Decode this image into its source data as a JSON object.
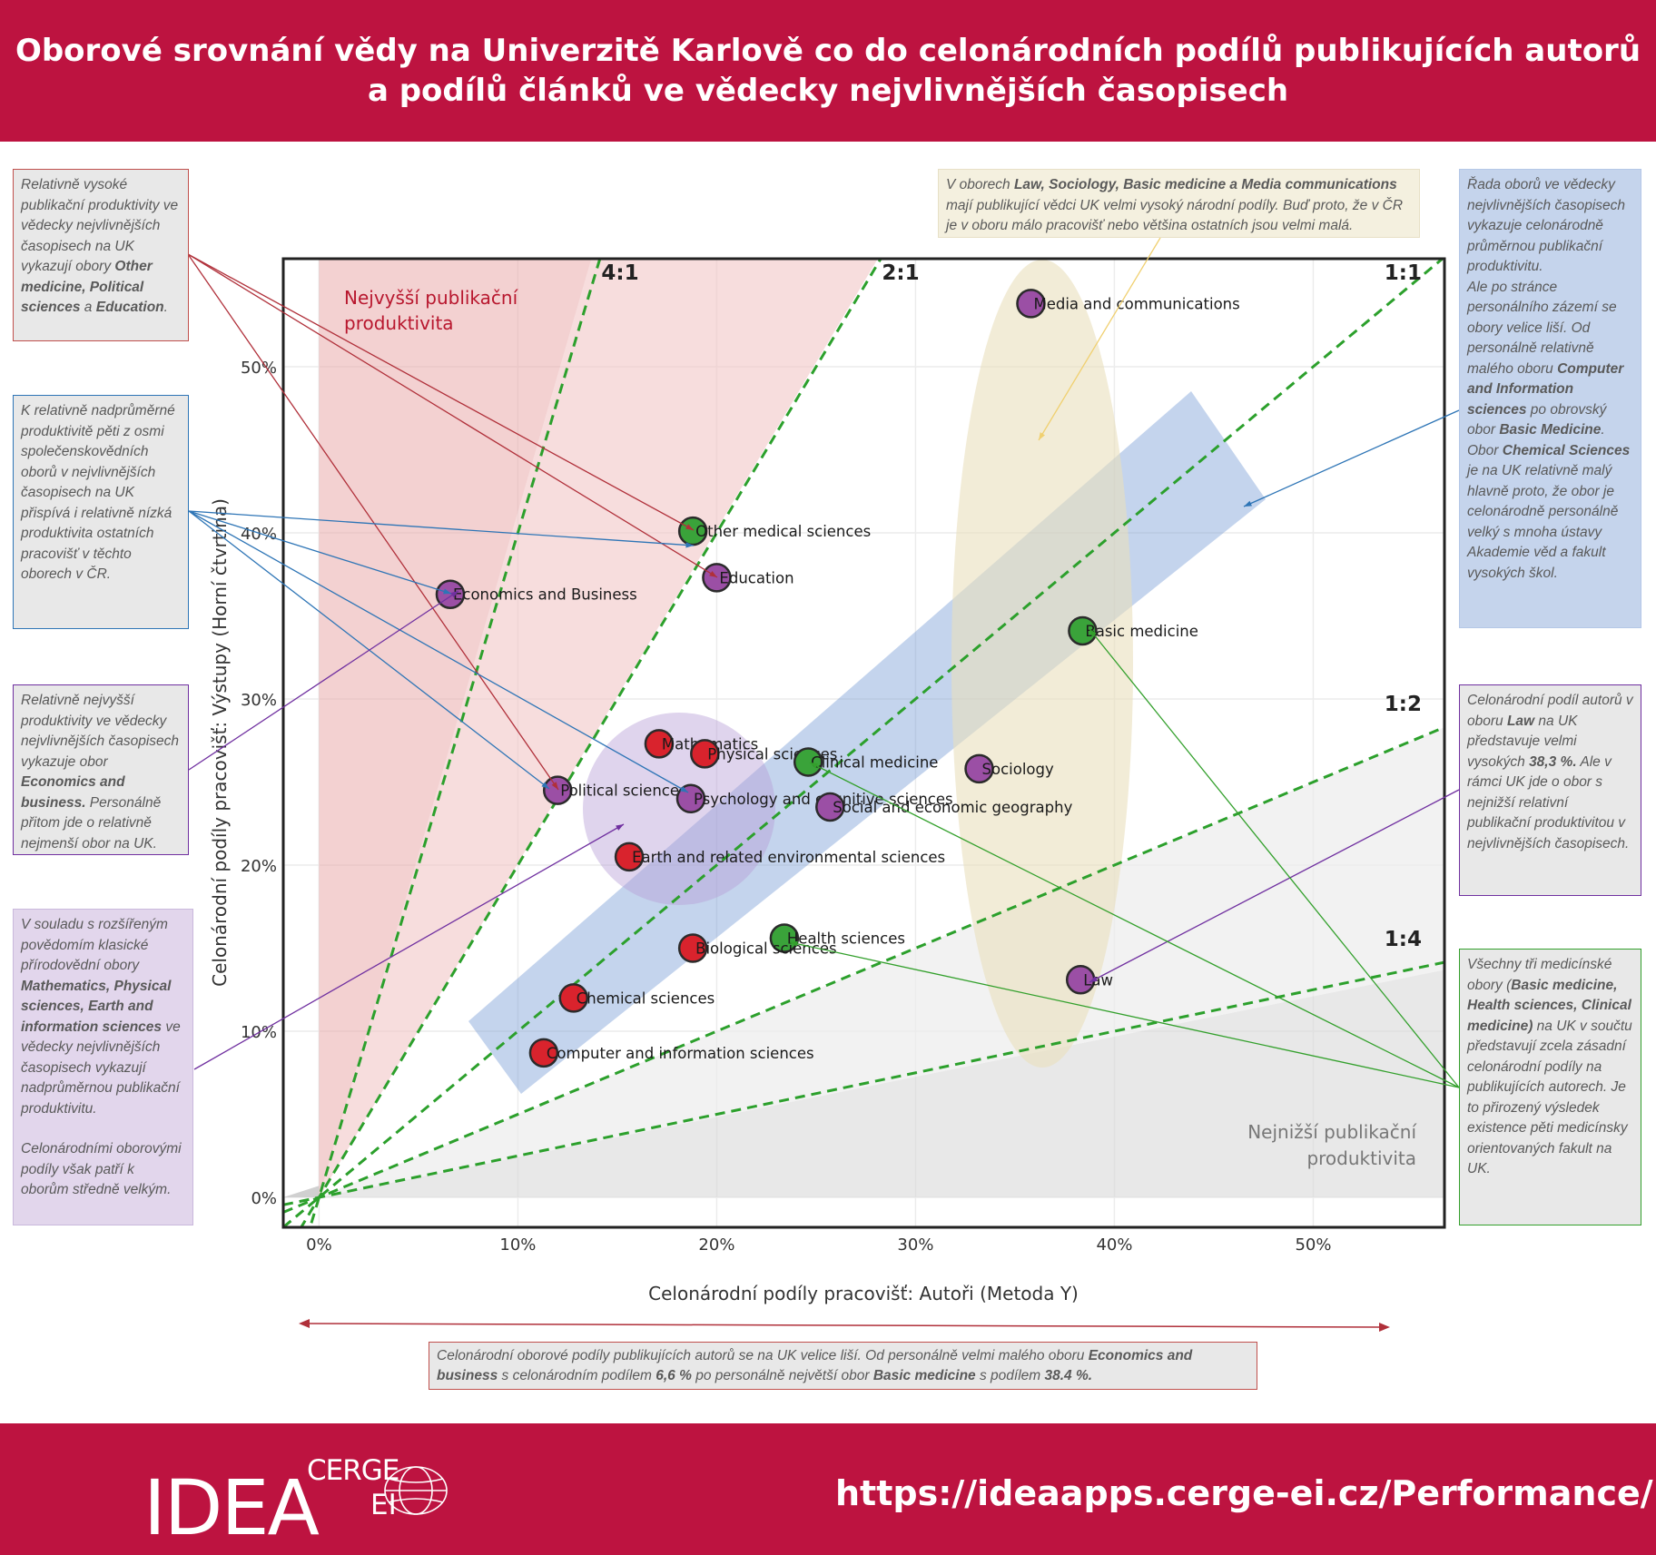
{
  "header": {
    "title_line1": "Oborové srovnání vědy na Univerzitě Karlově co do celonárodních podílů publikujících autorů",
    "title_line2": "a podílů článků ve vědecky nejvlivnějších časopisech"
  },
  "footer": {
    "logo_idea": "IDEA",
    "logo_cerge": "CERGE",
    "logo_ei": "EI",
    "url": "https://ideaapps.cerge-ei.cz/Performance/"
  },
  "colors": {
    "brand": "#bd1340",
    "humanities": "#9b4fa5",
    "natural": "#d9232d",
    "medical": "#3aa33a",
    "ratio_line": "#2ca02c"
  },
  "chart_data": {
    "type": "scatter",
    "xlabel": "Celonárodní podíly pracovišť: Autoři (Metoda Y)",
    "ylabel": "Celonárodní podíly pracovišť: Výstupy (Horní čtvrtina)",
    "xlim": [
      -0.018,
      0.566
    ],
    "ylim": [
      -0.018,
      0.565
    ],
    "x_ticks": [
      0,
      0.1,
      0.2,
      0.3,
      0.4,
      0.5
    ],
    "x_tick_labels": [
      "0%",
      "10%",
      "20%",
      "30%",
      "40%",
      "50%"
    ],
    "y_ticks": [
      0,
      0.1,
      0.2,
      0.3,
      0.4,
      0.5
    ],
    "y_tick_labels": [
      "0%",
      "10%",
      "20%",
      "30%",
      "40%",
      "50%"
    ],
    "grid": true,
    "ratio_lines": [
      {
        "label": "4:1",
        "slope": 4
      },
      {
        "label": "2:1",
        "slope": 2
      },
      {
        "label": "1:1",
        "slope": 1
      },
      {
        "label": "1:2",
        "slope": 0.5
      },
      {
        "label": "1:4",
        "slope": 0.25
      }
    ],
    "region_labels": {
      "highest": [
        "Nejvyšší publikační",
        "produktivita"
      ],
      "lowest": [
        "Nejnižší publikační",
        "produktivita"
      ]
    },
    "points": [
      {
        "name": "Media and communications",
        "x": 0.358,
        "y": 0.538,
        "group": "humanities"
      },
      {
        "name": "Other medical sciences",
        "x": 0.188,
        "y": 0.401,
        "group": "medical"
      },
      {
        "name": "Education",
        "x": 0.2,
        "y": 0.373,
        "group": "humanities"
      },
      {
        "name": "Economics and Business",
        "x": 0.066,
        "y": 0.363,
        "group": "humanities"
      },
      {
        "name": "Basic medicine",
        "x": 0.384,
        "y": 0.341,
        "group": "medical"
      },
      {
        "name": "Mathematics",
        "x": 0.171,
        "y": 0.273,
        "group": "natural"
      },
      {
        "name": "Physical sciences",
        "x": 0.194,
        "y": 0.267,
        "group": "natural"
      },
      {
        "name": "Clinical medicine",
        "x": 0.246,
        "y": 0.262,
        "group": "medical"
      },
      {
        "name": "Sociology",
        "x": 0.332,
        "y": 0.258,
        "group": "humanities"
      },
      {
        "name": "Political science",
        "x": 0.12,
        "y": 0.245,
        "group": "humanities"
      },
      {
        "name": "Psychology and cognitive sciences",
        "x": 0.187,
        "y": 0.24,
        "group": "humanities"
      },
      {
        "name": "Social and economic geography",
        "x": 0.257,
        "y": 0.235,
        "group": "humanities"
      },
      {
        "name": "Earth and related environmental sciences",
        "x": 0.156,
        "y": 0.205,
        "group": "natural"
      },
      {
        "name": "Health sciences",
        "x": 0.234,
        "y": 0.156,
        "group": "medical"
      },
      {
        "name": "Biological sciences",
        "x": 0.188,
        "y": 0.15,
        "group": "natural"
      },
      {
        "name": "Law",
        "x": 0.383,
        "y": 0.131,
        "group": "humanities"
      },
      {
        "name": "Chemical sciences",
        "x": 0.128,
        "y": 0.12,
        "group": "natural"
      },
      {
        "name": "Computer and information sciences",
        "x": 0.113,
        "y": 0.087,
        "group": "natural"
      }
    ]
  },
  "notes": {
    "red": {
      "pre": "Relativně vysoké publikační produktivity ve vědecky nejvlivnějších časopisech na UK vykazují obory ",
      "b1": "Other medicine, Political sciences",
      "mid": " a ",
      "b2": "Education",
      "post": "."
    },
    "blue": {
      "text": "K relativně nadprůměrné produktivitě pěti z osmi společenskovědních oborů v nejvlivnějších časopisech na UK přispívá i relativně nízká produktivita ostatních pracovišť v těchto oborech v ČR."
    },
    "purple": {
      "pre": "Relativně nejvyšší produktivity ve vědecky nejvlivnějších časopisech vykazuje obor ",
      "b1": "Economics and business.",
      "post": " Personálně přitom jde o relativně nejmenší obor na UK."
    },
    "lav": {
      "pre": "V souladu s rozšířeným povědomím klasické přírodovědní obory ",
      "b1": "Mathematics, Physical sciences, Earth and information sciences",
      "post": " ve vědecky nejvlivnějších časopisech vykazují nadprůměrnou publikační produktivitu.",
      "p2": "Celonárodními oborovými podíly však patří k oborům  středně velkým."
    },
    "tan": {
      "pre": "V oborech ",
      "b1": "Law, Sociology, Basic medicine a Media communications",
      "post": " mají publikující vědci UK velmi vysoký národní podíly.  Buď proto, že v ČR je v oboru málo pracovišť nebo většina ostatních jsou velmi malá."
    },
    "bluefill": {
      "p1": "Řada oborů ve vědecky nejvlivnějších časopisech vykazuje celonárodně průměrnou publikační produktivitu.",
      "p2_pre": "Ale po stránce personálního zázemí se obory velice liší.  Od personálně relativně malého oboru ",
      "p2_b1": "Computer and Information sciences",
      "p2_mid": " po obrovský obor ",
      "p2_b2": "Basic Medicine",
      "p2_post": ".",
      "p3_pre": "Obor ",
      "p3_b1": "Chemical Sciences",
      "p3_post": " je na UK relativně malý hlavně proto, že obor je celonárodně personálně velký s mnoha ústavy Akademie věd a fakult vysokých škol."
    },
    "law": {
      "pre": "Celonárodní podíl autorů v oboru ",
      "b1": "Law",
      "mid": " na UK představuje velmi vysokých ",
      "b2": "38,3 %.",
      "post": " Ale v rámci UK jde o obor s nejnižší relativní publikační produktivitou v nejvlivnějších časopisech."
    },
    "green": {
      "pre": "Všechny tři medicínské obory (",
      "b1": "Basic medicine, Health sciences, Clinical medicine)",
      "post": " na UK v součtu představují zcela zásadní celonárodní podíly na publikujících autorech. Je to přirozený výsledek existence pěti medicínsky orientovaných fakult na UK."
    },
    "bottom": {
      "pre": "Celonárodní oborové podíly publikujících autorů se na UK velice liší.  Od personálně velmi malého oboru ",
      "b1": "Economics and business",
      "mid1": " s celonárodním podílem ",
      "b2": "6,6 %",
      "mid2": " po personálně největší obor ",
      "b3": "Basic medicine",
      "post": " s podílem ",
      "b4": "38.4 %."
    }
  }
}
